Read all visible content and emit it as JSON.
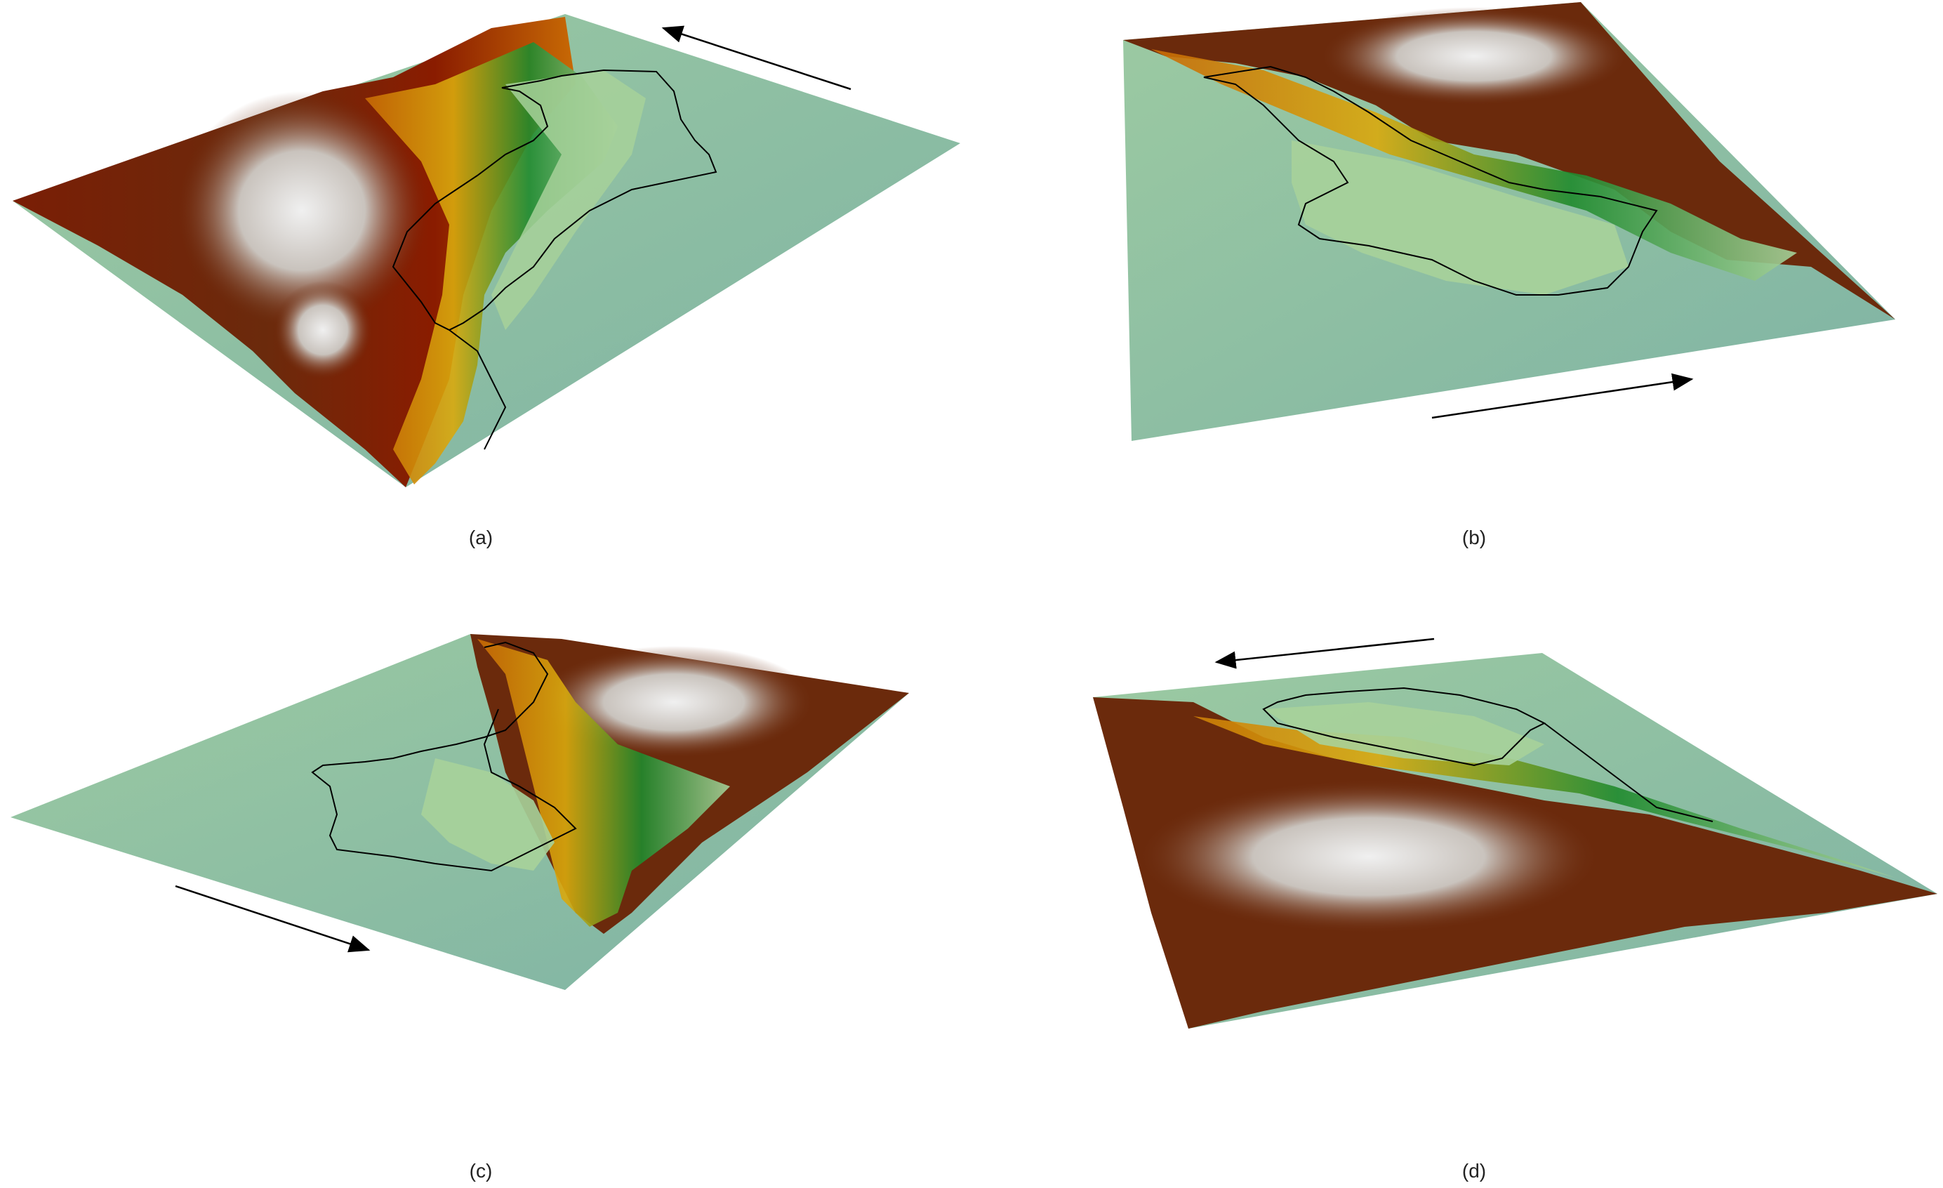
{
  "figure": {
    "panels": [
      {
        "label": "(a)"
      },
      {
        "label": "(b)"
      },
      {
        "label": "(c)"
      },
      {
        "label": "(d)"
      }
    ]
  },
  "colors": {
    "background": "#ffffff",
    "sea": "#8cbfa0",
    "sea_deep": "#7fb3a4",
    "lowland": "#a7d19a",
    "vegetation": "#1f8a2d",
    "hills_yellow": "#d9a90d",
    "hills_orange": "#c86a05",
    "mountains_red": "#8a1c00",
    "mountains_brown": "#6b2a0c",
    "peaks": "#e8e8e8",
    "boundary_line": "#000000",
    "arrow": "#000000"
  },
  "icons": [
    "direction-arrow-icon"
  ]
}
